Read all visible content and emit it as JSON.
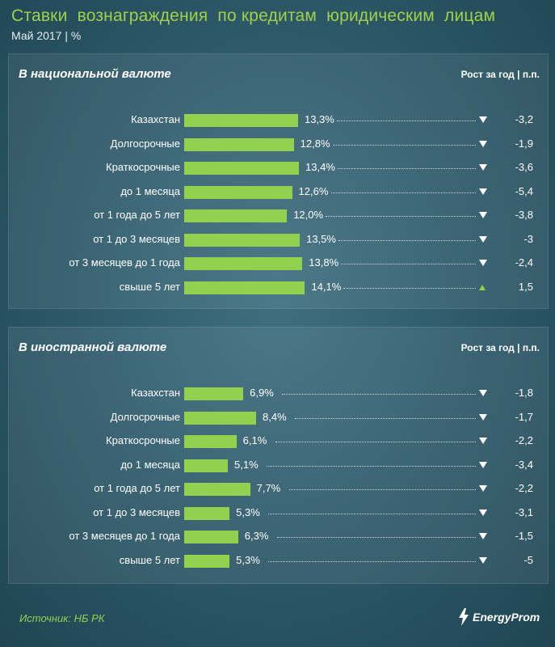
{
  "header": {
    "title": "Ставки  вознаграждения  по кредитам  юридическим  лицам",
    "subtitle": "Май 2017 | %"
  },
  "panels": [
    {
      "heading": "В национальной валюте",
      "col_header": "Рост за год | п.п."
    },
    {
      "heading": "В иностранной валюте",
      "col_header": "Рост за год | п.п."
    }
  ],
  "chart_data": [
    {
      "type": "bar",
      "orientation": "horizontal",
      "title": "В национальной валюте",
      "categories": [
        "Казахстан",
        "Долгосрочные",
        "Краткосрочные",
        "до 1 месяца",
        "от 1 года до 5 лет",
        "от 1 до 3 месяцев",
        "от 3 месяцев до 1 года",
        "свыше 5 лет"
      ],
      "values": [
        13.3,
        12.8,
        13.4,
        12.6,
        12.0,
        13.5,
        13.8,
        14.1
      ],
      "value_labels": [
        "13,3%",
        "12,8%",
        "13,4%",
        "12,6%",
        "12,0%",
        "13,5%",
        "13,8%",
        "14,1%"
      ],
      "change": [
        -3.2,
        -1.9,
        -3.6,
        -5.4,
        -3.8,
        -3,
        -2.4,
        1.5
      ],
      "change_labels": [
        "-3,2",
        "-1,9",
        "-3,6",
        "-5,4",
        "-3,8",
        "-3",
        "-2,4",
        "1,5"
      ],
      "change_direction": [
        "down",
        "down",
        "down",
        "down",
        "down",
        "down",
        "down",
        "up"
      ],
      "bar_color": "#92d050",
      "xlim": [
        0,
        15
      ]
    },
    {
      "type": "bar",
      "orientation": "horizontal",
      "title": "В иностранной валюте",
      "categories": [
        "Казахстан",
        "Долгосрочные",
        "Краткосрочные",
        "до 1 месяца",
        "от 1 года до 5 лет",
        "от 1 до 3 месяцев",
        "от 3 месяцев до 1 года",
        "свыше 5 лет"
      ],
      "values": [
        6.9,
        8.4,
        6.1,
        5.1,
        7.7,
        5.3,
        6.3,
        5.3
      ],
      "value_labels": [
        "6,9%",
        "8,4%",
        "6,1%",
        "5,1%",
        "7,7%",
        "5,3%",
        "6,3%",
        "5,3%"
      ],
      "change": [
        -1.8,
        -1.7,
        -2.2,
        -3.4,
        -2.2,
        -3.1,
        -1.5,
        -5
      ],
      "change_labels": [
        "-1,8",
        "-1,7",
        "-2,2",
        "-3,4",
        "-2,2",
        "-3,1",
        "-1,5",
        "-5"
      ],
      "change_direction": [
        "down",
        "down",
        "down",
        "down",
        "down",
        "down",
        "down",
        "down"
      ],
      "bar_color": "#92d050",
      "xlim": [
        0,
        10
      ]
    }
  ],
  "footer": {
    "source": "Источник: НБ РК",
    "logo_text": "EnergyProm",
    "logo_icon": "energyprom-logo-icon"
  },
  "colors": {
    "background": "#2c5767",
    "accent": "#92d050",
    "text": "#ffffff"
  }
}
